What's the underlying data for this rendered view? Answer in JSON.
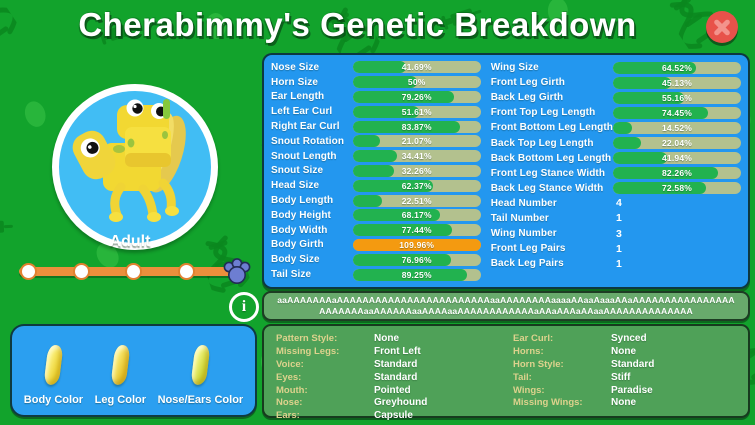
{
  "title": "Cherabimmy's Genetic Breakdown",
  "creature": {
    "stage": "Adult",
    "slider_dot_count": 4
  },
  "info_button": {
    "glyph": "i"
  },
  "stats": {
    "left": [
      {
        "label": "Nose Size",
        "value": "41.69%",
        "pct": 41.69
      },
      {
        "label": "Horn Size",
        "value": "50%",
        "pct": 50
      },
      {
        "label": "Ear Length",
        "value": "79.26%",
        "pct": 79.26
      },
      {
        "label": "Left Ear Curl",
        "value": "51.61%",
        "pct": 51.61
      },
      {
        "label": "Right Ear Curl",
        "value": "83.87%",
        "pct": 83.87
      },
      {
        "label": "Snout Rotation",
        "value": "21.07%",
        "pct": 21.07
      },
      {
        "label": "Snout Length",
        "value": "34.41%",
        "pct": 34.41
      },
      {
        "label": "Snout Size",
        "value": "32.26%",
        "pct": 32.26
      },
      {
        "label": "Head Size",
        "value": "62.37%",
        "pct": 62.37
      },
      {
        "label": "Body Length",
        "value": "22.51%",
        "pct": 22.51
      },
      {
        "label": "Body Height",
        "value": "68.17%",
        "pct": 68.17
      },
      {
        "label": "Body Width",
        "value": "77.44%",
        "pct": 77.44
      },
      {
        "label": "Body Girth",
        "value": "109.96%",
        "pct": 109.96
      },
      {
        "label": "Body Size",
        "value": "76.96%",
        "pct": 76.96
      },
      {
        "label": "Tail Size",
        "value": "89.25%",
        "pct": 89.25
      }
    ],
    "right_bars": [
      {
        "label": "Wing Size",
        "value": "64.52%",
        "pct": 64.52
      },
      {
        "label": "Front Leg Girth",
        "value": "45.13%",
        "pct": 45.13
      },
      {
        "label": "Back Leg Girth",
        "value": "55.16%",
        "pct": 55.16
      },
      {
        "label": "Front Top Leg Length",
        "value": "74.45%",
        "pct": 74.45
      },
      {
        "label": "Front Bottom Leg Length",
        "value": "14.52%",
        "pct": 14.52
      },
      {
        "label": "Back Top Leg Length",
        "value": "22.04%",
        "pct": 22.04
      },
      {
        "label": "Back Bottom Leg Length",
        "value": "41.94%",
        "pct": 41.94
      },
      {
        "label": "Front Leg Stance Width",
        "value": "82.26%",
        "pct": 82.26
      },
      {
        "label": "Back Leg Stance Width",
        "value": "72.58%",
        "pct": 72.58
      }
    ],
    "right_numbers": [
      {
        "label": "Head Number",
        "value": "4"
      },
      {
        "label": "Tail Number",
        "value": "1"
      },
      {
        "label": "Wing Number",
        "value": "3"
      },
      {
        "label": "Front Leg Pairs",
        "value": "1"
      },
      {
        "label": "Back Leg Pairs",
        "value": "1"
      }
    ]
  },
  "gene_code": "aaAAAAAAAaAAAAAAAAAAAAAAAAAAAAAAAAaaAAAAAAAAaaaaAAaaAaaaAAaAAAAAAAAAAAAAAAAAAAAAAAaaAAAAAAaaAAAAaaAAAAAAAAAAAAaAAaAAAaAAaaAAAAAAAAAAAAAA",
  "traits": {
    "left": [
      {
        "label": "Pattern Style:",
        "value": "None"
      },
      {
        "label": "Missing Legs:",
        "value": "Front Left"
      },
      {
        "label": "Voice:",
        "value": "Standard"
      },
      {
        "label": "Eyes:",
        "value": "Standard"
      },
      {
        "label": "Mouth:",
        "value": "Pointed"
      },
      {
        "label": "Nose:",
        "value": "Greyhound"
      },
      {
        "label": "Ears:",
        "value": "Capsule"
      }
    ],
    "right": [
      {
        "label": "Ear Curl:",
        "value": "Synced"
      },
      {
        "label": "Horns:",
        "value": "None"
      },
      {
        "label": "Horn Style:",
        "value": "Standard"
      },
      {
        "label": "Tail:",
        "value": "Stiff"
      },
      {
        "label": "Wings:",
        "value": "Paradise"
      },
      {
        "label": "Missing Wings:",
        "value": "None"
      }
    ]
  },
  "color_swatches": [
    {
      "label": "Body Color",
      "swatch_colors": [
        "#fbf07c",
        "#ecd22f"
      ]
    },
    {
      "label": "Leg Color",
      "swatch_colors": [
        "#f9e96e",
        "#e7c32a"
      ]
    },
    {
      "label": "Nose/Ears Color",
      "swatch_colors": [
        "#f2f47e",
        "#c9d52f"
      ]
    }
  ],
  "colors": {
    "background_green": "#12a32c",
    "panel_blue": "#2397ef",
    "bar_fill_green": "#22b24f",
    "bar_over_orange": "#f49a10",
    "bar_track_tan": "#b3c18e",
    "slider_orange": "#ec8f3c",
    "paw_blue": "#6d7ed2",
    "close_red": "#e8524a",
    "trait_label_yellow": "#ddd28d"
  }
}
